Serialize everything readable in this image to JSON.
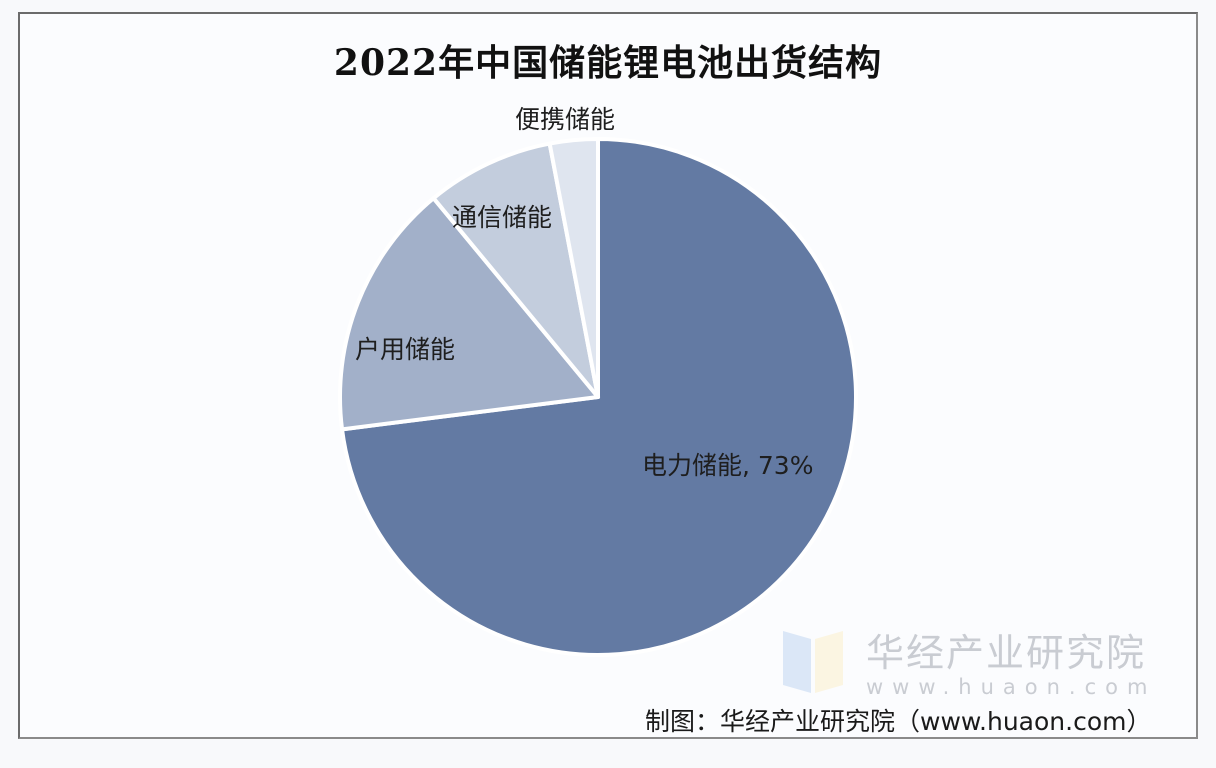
{
  "title": "2022年中国储能锂电池出货结构",
  "chart_data": {
    "type": "pie",
    "title": "2022年中国储能锂电池出货结构",
    "start_angle": "12 o'clock, clockwise",
    "categories": [
      "电力储能",
      "户用储能",
      "通信储能",
      "便携储能"
    ],
    "values": [
      73,
      16,
      8,
      3
    ],
    "unit": "%",
    "data_labels": [
      "电力储能, 73%",
      "户用储能",
      "通信储能",
      "便携储能"
    ],
    "colors": [
      "#637aa3",
      "#a2b0c9",
      "#c3cddd",
      "#dfe5ef"
    ],
    "legend": "none"
  },
  "labels": {
    "power": "电力储能, 73%",
    "household": "户用储能",
    "telecom": "通信储能",
    "portable": "便携储能"
  },
  "watermark": {
    "name": "华经产业研究院",
    "url": "www.huaon.com"
  },
  "source": "制图：华经产业研究院（www.huaon.com）"
}
